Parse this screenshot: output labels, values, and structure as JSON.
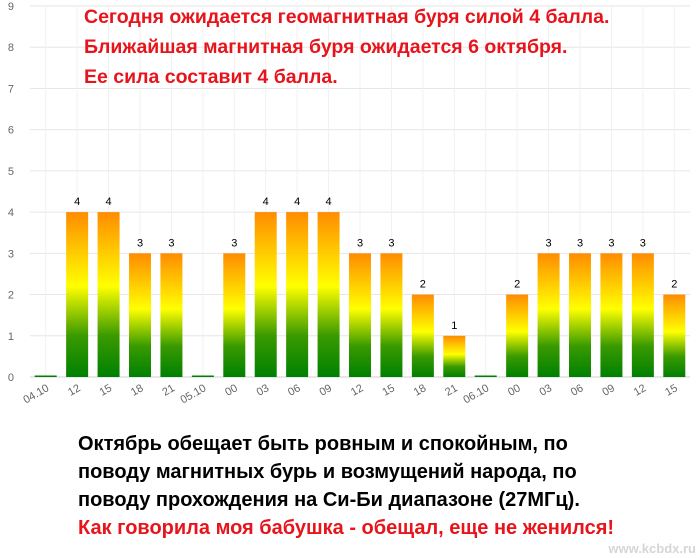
{
  "headline": {
    "line1": "Сегодня ожидается геомагнитная буря силой 4 балла.",
    "line2": "Ближайшая магнитная буря ожидается 6 октября.",
    "line3": "Ее сила составит 4 балла."
  },
  "paragraph": {
    "line1": "Октябрь обещает быть ровным и спокойным, по",
    "line2": "поводу магнитных бурь и возмущений народа, по",
    "line3": "поводу прохождения на Си-Би диапазоне (27МГц).",
    "line4": "Как говорила моя бабушка - обещал, еще не женился!"
  },
  "watermark": "www.kcbdx.ru",
  "colors": {
    "accent_red": "#e8141b",
    "bar_top": "#ff8c00",
    "bar_mid": "#ffff00",
    "bar_bottom": "#008000"
  },
  "chart_data": {
    "type": "bar",
    "categories": [
      "04.10",
      "12",
      "15",
      "18",
      "21",
      "05.10",
      "00",
      "03",
      "06",
      "09",
      "12",
      "15",
      "18",
      "21",
      "06.10",
      "00",
      "03",
      "06",
      "09",
      "12",
      "15"
    ],
    "values": [
      0,
      4,
      4,
      3,
      3,
      0,
      3,
      4,
      4,
      4,
      3,
      3,
      2,
      1,
      0,
      2,
      3,
      3,
      3,
      3,
      2
    ],
    "data_labels": [
      "",
      "4",
      "4",
      "3",
      "3",
      "",
      "3",
      "4",
      "4",
      "4",
      "3",
      "3",
      "2",
      "1",
      "",
      "2",
      "3",
      "3",
      "3",
      "3",
      "2"
    ],
    "yticks": [
      "0",
      "1",
      "2",
      "3",
      "4",
      "5",
      "6",
      "7",
      "8",
      "9"
    ],
    "ylim": [
      0,
      9
    ],
    "grid": true
  }
}
